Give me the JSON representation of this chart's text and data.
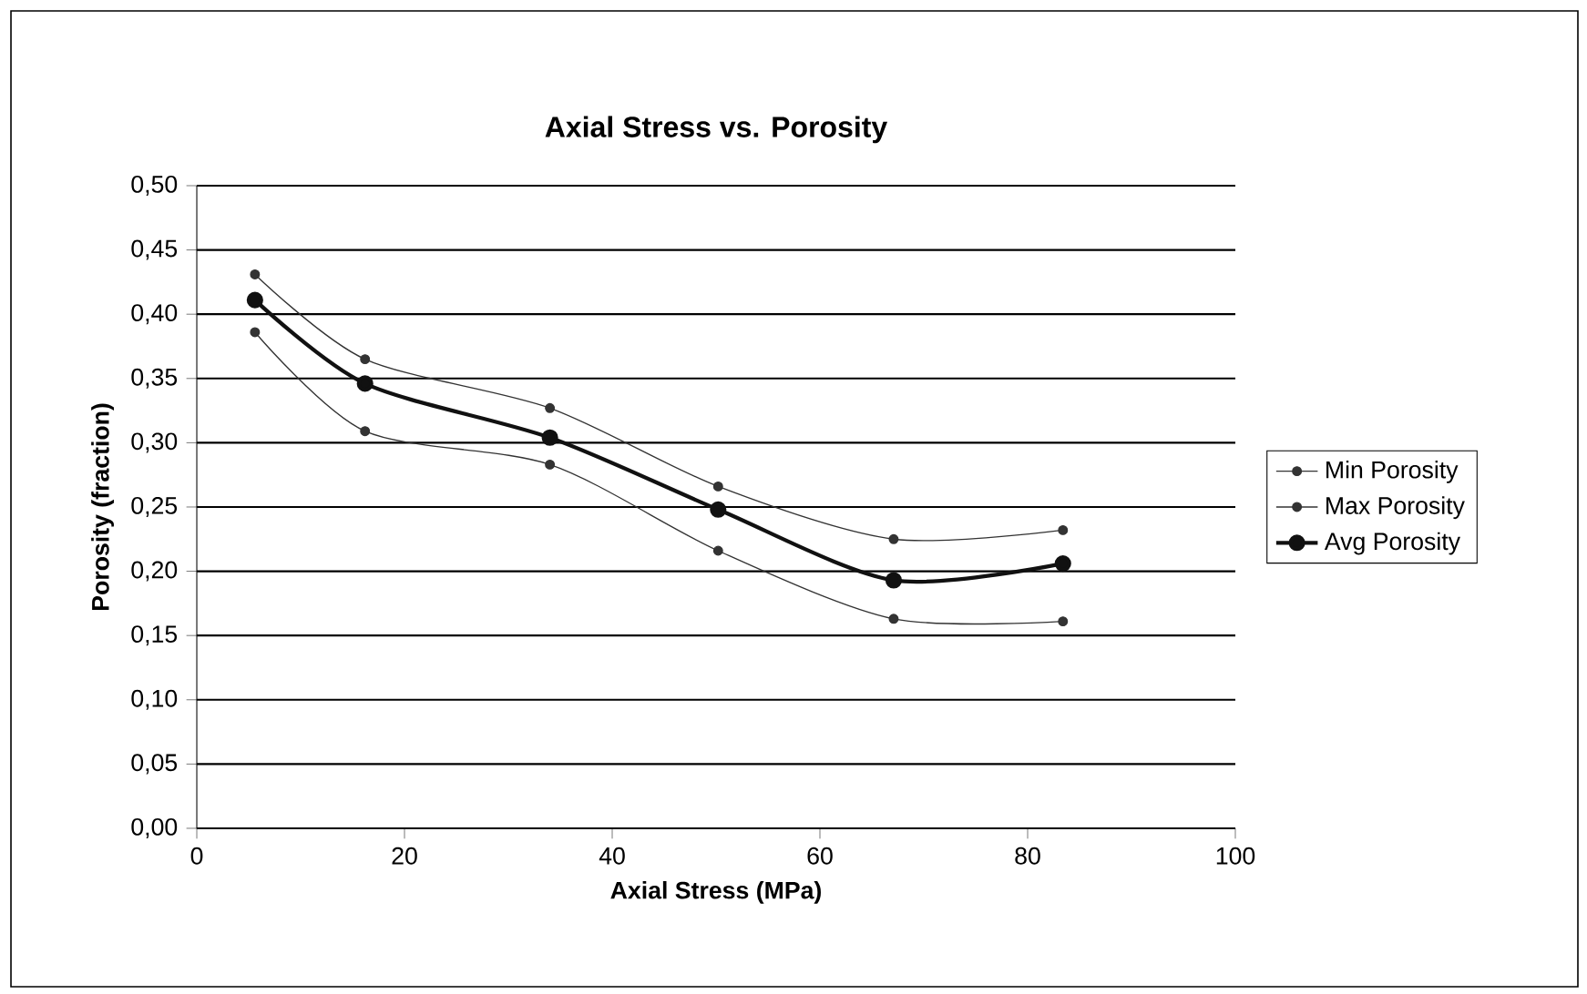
{
  "chart_data": {
    "type": "line",
    "title": "Axial Stress vs. Porosity",
    "xlabel": "Axial Stress (MPa)",
    "ylabel": "Porosity (fraction)",
    "x": [
      5.6,
      16.2,
      34.0,
      50.2,
      67.1,
      83.4
    ],
    "series": [
      {
        "name": "Min Porosity",
        "color": "#333333",
        "values": [
          0.386,
          0.309,
          0.283,
          0.216,
          0.163,
          0.161
        ]
      },
      {
        "name": "Max Porosity",
        "color": "#333333",
        "values": [
          0.431,
          0.365,
          0.327,
          0.266,
          0.225,
          0.232
        ]
      },
      {
        "name": "Avg Porosity",
        "color": "#111111",
        "values": [
          0.411,
          0.346,
          0.304,
          0.248,
          0.193,
          0.206
        ]
      }
    ],
    "xlim": [
      0,
      100
    ],
    "xticks": [
      0,
      20,
      40,
      60,
      80,
      100
    ],
    "ylim": [
      0,
      0.5
    ],
    "yticks": [
      {
        "value": 0,
        "label": "0,00"
      },
      {
        "value": 0.05,
        "label": "0,05"
      },
      {
        "value": 0.1,
        "label": "0,10"
      },
      {
        "value": 0.15,
        "label": "0,15"
      },
      {
        "value": 0.2,
        "label": "0,20"
      },
      {
        "value": 0.25,
        "label": "0,25"
      },
      {
        "value": 0.3,
        "label": "0,30"
      },
      {
        "value": 0.35,
        "label": "0,35"
      },
      {
        "value": 0.4,
        "label": "0,40"
      },
      {
        "value": 0.45,
        "label": "0,45"
      },
      {
        "value": 0.5,
        "label": "0,50"
      }
    ],
    "grid": "y",
    "legend": "right",
    "marker": "circle",
    "line_style": "solid"
  }
}
